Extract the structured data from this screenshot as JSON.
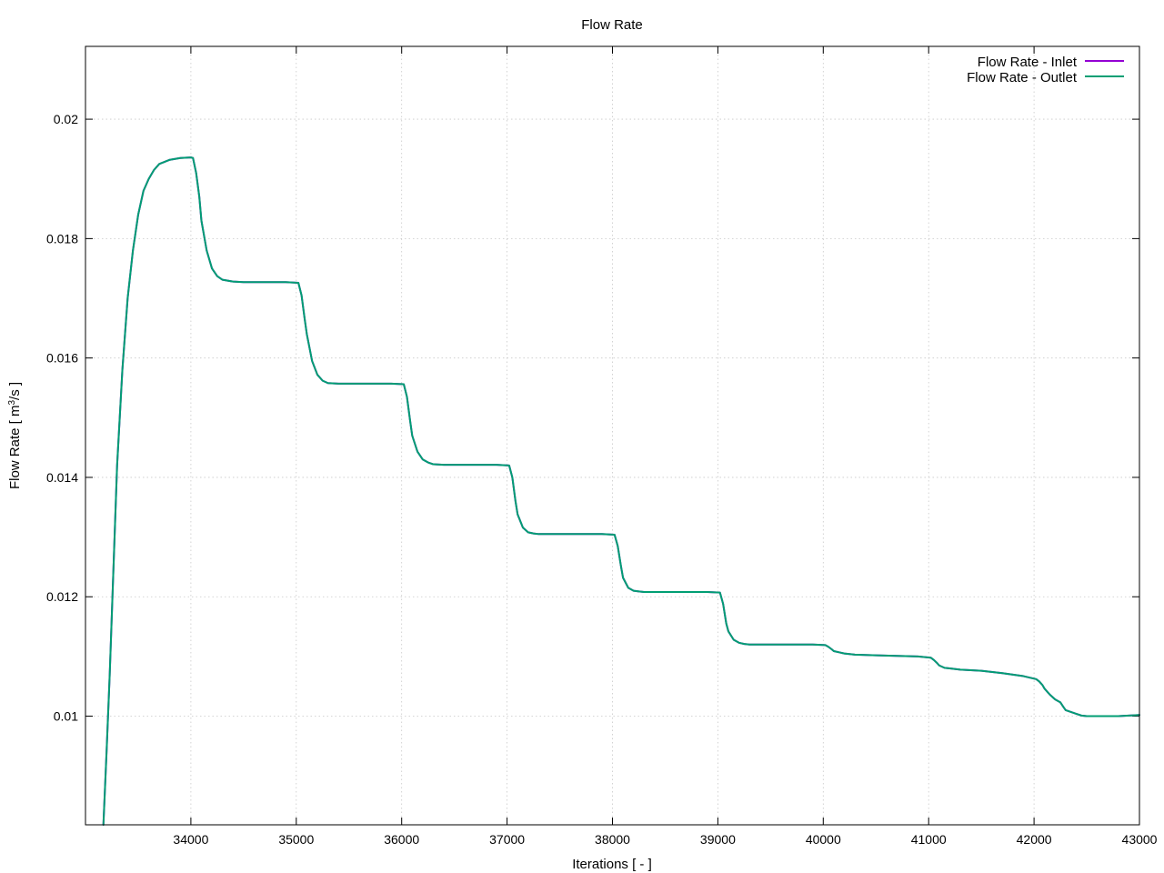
{
  "chart_data": {
    "type": "line",
    "title": "Flow Rate",
    "xlabel": "Iterations [ - ]",
    "ylabel_prefix": "Flow Rate [ m",
    "ylabel_sup": "3",
    "ylabel_suffix": "/s ]",
    "xlim": [
      33000,
      43000
    ],
    "ylim": [
      0.00818,
      0.02122
    ],
    "x_ticks": [
      34000,
      35000,
      36000,
      37000,
      38000,
      39000,
      40000,
      41000,
      42000,
      43000
    ],
    "x_tick_labels": [
      "34000",
      "35000",
      "36000",
      "37000",
      "38000",
      "39000",
      "40000",
      "41000",
      "42000",
      "43000"
    ],
    "y_ticks": [
      0.01,
      0.012,
      0.014,
      0.016,
      0.018,
      0.02
    ],
    "y_tick_labels": [
      "0.01",
      "0.012",
      "0.014",
      "0.016",
      "0.018",
      "0.02"
    ],
    "grid": true,
    "legend_position": "top-right",
    "series": [
      {
        "name": "Flow Rate - Inlet",
        "color": "#9400d3",
        "x": [
          33170,
          33200,
          33230,
          33260,
          33300,
          33350,
          33400,
          33450,
          33500,
          33550,
          33600,
          33650,
          33700,
          33800,
          33900,
          34000,
          34020,
          34050,
          34080,
          34100,
          34150,
          34200,
          34250,
          34300,
          34400,
          34500,
          34700,
          34900,
          35020,
          35050,
          35080,
          35100,
          35150,
          35200,
          35250,
          35300,
          35400,
          35500,
          35700,
          35900,
          36020,
          36050,
          36080,
          36100,
          36150,
          36200,
          36250,
          36300,
          36400,
          36500,
          36700,
          36900,
          37020,
          37050,
          37080,
          37100,
          37150,
          37200,
          37250,
          37300,
          37400,
          37500,
          37700,
          37900,
          38020,
          38050,
          38080,
          38100,
          38150,
          38200,
          38250,
          38300,
          38400,
          38500,
          38700,
          38900,
          39020,
          39050,
          39080,
          39100,
          39150,
          39200,
          39250,
          39300,
          39400,
          39500,
          39700,
          39900,
          40020,
          40050,
          40080,
          40100,
          40150,
          40200,
          40300,
          40500,
          40700,
          40900,
          41020,
          41050,
          41080,
          41100,
          41150,
          41200,
          41300,
          41500,
          41700,
          41900,
          42020,
          42050,
          42080,
          42100,
          42150,
          42200,
          42250,
          42280,
          42300,
          42350,
          42400,
          42450,
          42500,
          42600,
          42700,
          42800,
          42900,
          43000
        ],
        "y": [
          0.00818,
          0.0094,
          0.0107,
          0.0122,
          0.0142,
          0.0158,
          0.017,
          0.0178,
          0.0184,
          0.0188,
          0.019,
          0.01915,
          0.01925,
          0.01932,
          0.01935,
          0.01936,
          0.01935,
          0.0191,
          0.0187,
          0.0183,
          0.0178,
          0.0175,
          0.01737,
          0.01731,
          0.01728,
          0.01727,
          0.01727,
          0.01727,
          0.01726,
          0.01705,
          0.01665,
          0.0164,
          0.01595,
          0.01572,
          0.01562,
          0.01558,
          0.01557,
          0.01557,
          0.01557,
          0.01557,
          0.01556,
          0.01535,
          0.01495,
          0.0147,
          0.01443,
          0.0143,
          0.01425,
          0.01422,
          0.01421,
          0.01421,
          0.01421,
          0.01421,
          0.0142,
          0.014,
          0.0136,
          0.01338,
          0.01316,
          0.01308,
          0.01306,
          0.01305,
          0.01305,
          0.01305,
          0.01305,
          0.01305,
          0.01304,
          0.01285,
          0.01252,
          0.01232,
          0.01215,
          0.0121,
          0.01209,
          0.01208,
          0.01208,
          0.01208,
          0.01208,
          0.01208,
          0.01207,
          0.01188,
          0.01155,
          0.01142,
          0.01128,
          0.01123,
          0.01121,
          0.0112,
          0.0112,
          0.0112,
          0.0112,
          0.0112,
          0.01119,
          0.01116,
          0.01112,
          0.01109,
          0.01107,
          0.01105,
          0.01103,
          0.01102,
          0.01101,
          0.011,
          0.01098,
          0.01094,
          0.01089,
          0.01085,
          0.01081,
          0.0108,
          0.01078,
          0.01076,
          0.01072,
          0.01067,
          0.01062,
          0.01058,
          0.01052,
          0.01046,
          0.01036,
          0.01028,
          0.01023,
          0.01015,
          0.0101,
          0.01007,
          0.01004,
          0.01001,
          0.01,
          0.01,
          0.01,
          0.01,
          0.01001,
          0.01002
        ]
      },
      {
        "name": "Flow Rate - Outlet",
        "color": "#009e73",
        "x": [
          33170,
          33200,
          33230,
          33260,
          33300,
          33350,
          33400,
          33450,
          33500,
          33550,
          33600,
          33650,
          33700,
          33800,
          33900,
          34000,
          34020,
          34050,
          34080,
          34100,
          34150,
          34200,
          34250,
          34300,
          34400,
          34500,
          34700,
          34900,
          35020,
          35050,
          35080,
          35100,
          35150,
          35200,
          35250,
          35300,
          35400,
          35500,
          35700,
          35900,
          36020,
          36050,
          36080,
          36100,
          36150,
          36200,
          36250,
          36300,
          36400,
          36500,
          36700,
          36900,
          37020,
          37050,
          37080,
          37100,
          37150,
          37200,
          37250,
          37300,
          37400,
          37500,
          37700,
          37900,
          38020,
          38050,
          38080,
          38100,
          38150,
          38200,
          38250,
          38300,
          38400,
          38500,
          38700,
          38900,
          39020,
          39050,
          39080,
          39100,
          39150,
          39200,
          39250,
          39300,
          39400,
          39500,
          39700,
          39900,
          40020,
          40050,
          40080,
          40100,
          40150,
          40200,
          40300,
          40500,
          40700,
          40900,
          41020,
          41050,
          41080,
          41100,
          41150,
          41200,
          41300,
          41500,
          41700,
          41900,
          42020,
          42050,
          42080,
          42100,
          42150,
          42200,
          42250,
          42280,
          42300,
          42350,
          42400,
          42450,
          42500,
          42600,
          42700,
          42800,
          42900,
          43000
        ],
        "y": [
          0.00818,
          0.0094,
          0.0107,
          0.0122,
          0.0142,
          0.0158,
          0.017,
          0.0178,
          0.0184,
          0.0188,
          0.019,
          0.01915,
          0.01925,
          0.01932,
          0.01935,
          0.01936,
          0.01935,
          0.0191,
          0.0187,
          0.0183,
          0.0178,
          0.0175,
          0.01737,
          0.01731,
          0.01728,
          0.01727,
          0.01727,
          0.01727,
          0.01726,
          0.01705,
          0.01665,
          0.0164,
          0.01595,
          0.01572,
          0.01562,
          0.01558,
          0.01557,
          0.01557,
          0.01557,
          0.01557,
          0.01556,
          0.01535,
          0.01495,
          0.0147,
          0.01443,
          0.0143,
          0.01425,
          0.01422,
          0.01421,
          0.01421,
          0.01421,
          0.01421,
          0.0142,
          0.014,
          0.0136,
          0.01338,
          0.01316,
          0.01308,
          0.01306,
          0.01305,
          0.01305,
          0.01305,
          0.01305,
          0.01305,
          0.01304,
          0.01285,
          0.01252,
          0.01232,
          0.01215,
          0.0121,
          0.01209,
          0.01208,
          0.01208,
          0.01208,
          0.01208,
          0.01208,
          0.01207,
          0.01188,
          0.01155,
          0.01142,
          0.01128,
          0.01123,
          0.01121,
          0.0112,
          0.0112,
          0.0112,
          0.0112,
          0.0112,
          0.01119,
          0.01116,
          0.01112,
          0.01109,
          0.01107,
          0.01105,
          0.01103,
          0.01102,
          0.01101,
          0.011,
          0.01098,
          0.01094,
          0.01089,
          0.01085,
          0.01081,
          0.0108,
          0.01078,
          0.01076,
          0.01072,
          0.01067,
          0.01062,
          0.01058,
          0.01052,
          0.01046,
          0.01036,
          0.01028,
          0.01023,
          0.01015,
          0.0101,
          0.01007,
          0.01004,
          0.01001,
          0.01,
          0.01,
          0.01,
          0.01,
          0.01001,
          0.01002
        ]
      }
    ]
  }
}
